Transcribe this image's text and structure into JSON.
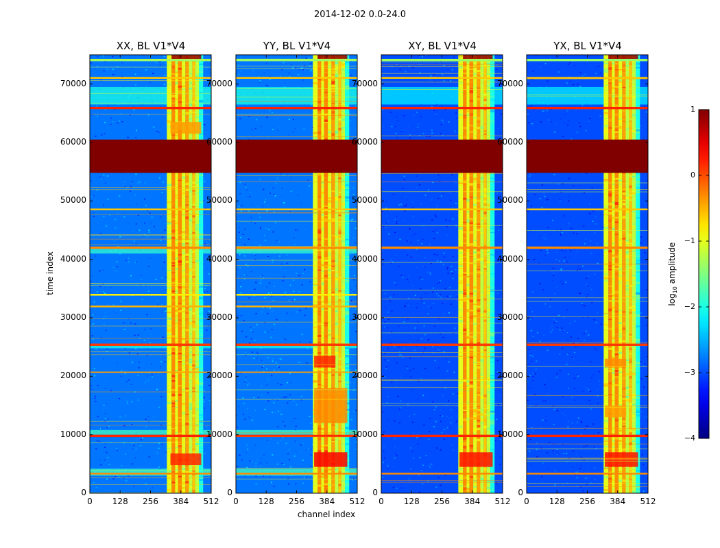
{
  "chart_data": {
    "type": "heatmap",
    "suptitle": "2014-12-02 0.0-24.0",
    "xlabel": "channel index",
    "ylabel": "time index",
    "colorbar_label": "log10 amplitude",
    "colorbar_label_base": "log",
    "colorbar_label_sub": "10",
    "colorbar_label_rest": " amplitude",
    "colormap": "jet",
    "clim": [
      -4,
      1
    ],
    "colorbar_ticks": [
      {
        "value": 1,
        "label": "1"
      },
      {
        "value": 0,
        "label": "0"
      },
      {
        "value": -1,
        "label": "−1"
      },
      {
        "value": -2,
        "label": "−2"
      },
      {
        "value": -3,
        "label": "−3"
      },
      {
        "value": -4,
        "label": "−4"
      }
    ],
    "xlim": [
      0,
      512
    ],
    "ylim": [
      0,
      75000
    ],
    "xticks": [
      {
        "value": 0,
        "label": "0"
      },
      {
        "value": 128,
        "label": "128"
      },
      {
        "value": 256,
        "label": "256"
      },
      {
        "value": 384,
        "label": "384"
      },
      {
        "value": 512,
        "label": "512"
      }
    ],
    "yticks": [
      {
        "value": 0,
        "label": "0"
      },
      {
        "value": 10000,
        "label": "10000"
      },
      {
        "value": 20000,
        "label": "20000"
      },
      {
        "value": 30000,
        "label": "30000"
      },
      {
        "value": 40000,
        "label": "40000"
      },
      {
        "value": 50000,
        "label": "50000"
      },
      {
        "value": 60000,
        "label": "60000"
      },
      {
        "value": 70000,
        "label": "70000"
      }
    ],
    "panels": [
      {
        "title": "XX, BL V1*V4",
        "background": -2.8,
        "rfi_channels": [
          [
            325,
            345,
            -1.0
          ],
          [
            345,
            360,
            -0.3
          ],
          [
            360,
            372,
            -1.0
          ],
          [
            372,
            388,
            -0.3
          ],
          [
            388,
            403,
            -1.0
          ],
          [
            403,
            418,
            -0.4
          ],
          [
            418,
            432,
            -1.2
          ],
          [
            432,
            445,
            -0.6
          ],
          [
            445,
            460,
            -1.2
          ],
          [
            460,
            478,
            -2.0
          ]
        ],
        "flagged_blocks": [
          [
            54800,
            60500,
            1.0
          ]
        ],
        "bright_rows": [
          [
            3200,
            3500,
            -0.3
          ],
          [
            9600,
            10000,
            0.2
          ],
          [
            20600,
            20800,
            -0.4
          ],
          [
            25200,
            25600,
            0.1
          ],
          [
            31800,
            32100,
            -0.5
          ],
          [
            33800,
            34100,
            -0.8
          ],
          [
            41800,
            42200,
            -0.3
          ],
          [
            48400,
            48700,
            -0.6
          ],
          [
            65700,
            66100,
            0.2
          ],
          [
            70900,
            71200,
            -0.6
          ],
          [
            73900,
            74300,
            -1.4
          ]
        ],
        "hot_patches": [
          [
            340,
            470,
            4800,
            6800,
            0.2
          ],
          [
            340,
            470,
            61500,
            63500,
            -0.4
          ],
          [
            345,
            470,
            74000,
            75000,
            0.9
          ]
        ],
        "cyan_bands": [
          [
            3000,
            4200,
            -1.8
          ],
          [
            10000,
            10800,
            -1.8
          ],
          [
            24800,
            25200,
            -2.0
          ],
          [
            41000,
            41800,
            -1.9
          ],
          [
            66500,
            69500,
            -2.0
          ]
        ]
      },
      {
        "title": "YY, BL V1*V4",
        "background": -2.8,
        "rfi_channels": [
          [
            325,
            345,
            -1.0
          ],
          [
            345,
            360,
            -0.3
          ],
          [
            360,
            372,
            -1.0
          ],
          [
            372,
            388,
            -0.3
          ],
          [
            388,
            403,
            -1.0
          ],
          [
            403,
            418,
            -0.4
          ],
          [
            418,
            432,
            -1.2
          ],
          [
            432,
            445,
            -0.6
          ],
          [
            445,
            460,
            -1.2
          ],
          [
            460,
            478,
            -2.0
          ]
        ],
        "flagged_blocks": [
          [
            54800,
            60500,
            1.0
          ]
        ],
        "bright_rows": [
          [
            3200,
            3500,
            -0.3
          ],
          [
            9600,
            10000,
            0.2
          ],
          [
            20600,
            20800,
            -0.4
          ],
          [
            25200,
            25600,
            0.1
          ],
          [
            31800,
            32100,
            -0.5
          ],
          [
            33800,
            34100,
            -0.8
          ],
          [
            41800,
            42200,
            -0.3
          ],
          [
            48400,
            48700,
            -0.6
          ],
          [
            65700,
            66100,
            0.2
          ],
          [
            70900,
            71200,
            -0.6
          ],
          [
            73900,
            74300,
            -1.4
          ]
        ],
        "hot_patches": [
          [
            330,
            470,
            4500,
            7000,
            0.4
          ],
          [
            330,
            470,
            12000,
            18000,
            -0.3
          ],
          [
            330,
            420,
            21500,
            23500,
            0.2
          ],
          [
            345,
            470,
            74000,
            75000,
            0.9
          ]
        ],
        "cyan_bands": [
          [
            3000,
            4200,
            -1.8
          ],
          [
            10000,
            10800,
            -1.8
          ],
          [
            24800,
            25200,
            -2.0
          ],
          [
            41000,
            41800,
            -1.9
          ],
          [
            66500,
            69500,
            -2.0
          ]
        ]
      },
      {
        "title": "XY, BL V1*V4",
        "background": -3.0,
        "rfi_channels": [
          [
            325,
            345,
            -1.0
          ],
          [
            345,
            360,
            -0.3
          ],
          [
            360,
            372,
            -1.0
          ],
          [
            372,
            388,
            -0.3
          ],
          [
            388,
            403,
            -1.0
          ],
          [
            403,
            418,
            -0.4
          ],
          [
            418,
            432,
            -1.2
          ],
          [
            432,
            445,
            -0.6
          ],
          [
            445,
            460,
            -1.2
          ],
          [
            460,
            478,
            -2.0
          ]
        ],
        "flagged_blocks": [
          [
            54800,
            60500,
            1.0
          ]
        ],
        "bright_rows": [
          [
            3200,
            3500,
            -0.3
          ],
          [
            9600,
            10000,
            0.2
          ],
          [
            25200,
            25600,
            0.1
          ],
          [
            41800,
            42200,
            -0.3
          ],
          [
            48400,
            48700,
            -0.6
          ],
          [
            65700,
            66100,
            0.2
          ],
          [
            70900,
            71200,
            -0.6
          ],
          [
            73900,
            74300,
            -1.4
          ]
        ],
        "hot_patches": [
          [
            330,
            470,
            4500,
            7000,
            0.3
          ],
          [
            345,
            470,
            74000,
            75000,
            0.9
          ]
        ],
        "cyan_bands": [
          [
            66500,
            69500,
            -2.2
          ]
        ]
      },
      {
        "title": "YX, BL V1*V4",
        "background": -3.0,
        "rfi_channels": [
          [
            325,
            345,
            -1.0
          ],
          [
            345,
            360,
            -0.3
          ],
          [
            360,
            372,
            -1.0
          ],
          [
            372,
            388,
            -0.3
          ],
          [
            388,
            403,
            -1.0
          ],
          [
            403,
            418,
            -0.4
          ],
          [
            418,
            432,
            -1.2
          ],
          [
            432,
            445,
            -0.6
          ],
          [
            445,
            460,
            -1.2
          ],
          [
            460,
            478,
            -2.0
          ]
        ],
        "flagged_blocks": [
          [
            54800,
            60500,
            1.0
          ]
        ],
        "bright_rows": [
          [
            3200,
            3500,
            -0.3
          ],
          [
            9600,
            10000,
            0.2
          ],
          [
            25200,
            25600,
            0.1
          ],
          [
            41800,
            42200,
            -0.3
          ],
          [
            48400,
            48700,
            -0.6
          ],
          [
            65700,
            66100,
            0.2
          ],
          [
            70900,
            71200,
            -0.6
          ],
          [
            73900,
            74300,
            -1.4
          ]
        ],
        "hot_patches": [
          [
            330,
            470,
            4500,
            7000,
            0.3
          ],
          [
            330,
            420,
            13000,
            15000,
            -0.4
          ],
          [
            330,
            420,
            21500,
            23000,
            -0.3
          ],
          [
            345,
            470,
            74000,
            75000,
            0.9
          ]
        ],
        "cyan_bands": [
          [
            66500,
            69500,
            -2.2
          ]
        ]
      }
    ]
  }
}
